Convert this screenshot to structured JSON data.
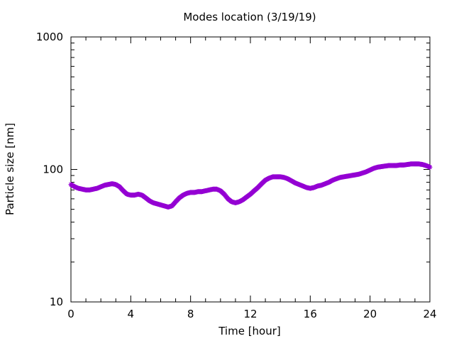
{
  "chart_data": {
    "type": "line",
    "title": "Modes location (3/19/19)",
    "xlabel": "Time [hour]",
    "ylabel": "Particle size [nm]",
    "xlim": [
      0,
      24
    ],
    "ylim": [
      10,
      1000
    ],
    "yscale": "log",
    "grid": false,
    "legend": "none",
    "x_ticks": [
      0,
      4,
      8,
      12,
      16,
      20,
      24
    ],
    "x_tick_labels": [
      "0",
      "4",
      "8",
      "12",
      "16",
      "20",
      "24"
    ],
    "y_ticks": [
      10,
      100,
      1000
    ],
    "y_tick_labels": [
      "10",
      "100",
      "1000"
    ],
    "series": [
      {
        "color": "#9400d3",
        "marker": "star",
        "x": [
          0,
          0.25,
          0.5,
          0.75,
          1.0,
          1.25,
          1.5,
          1.75,
          2.0,
          2.25,
          2.5,
          2.75,
          3.0,
          3.25,
          3.5,
          3.75,
          4.0,
          4.25,
          4.5,
          4.75,
          5.0,
          5.25,
          5.5,
          5.75,
          6.0,
          6.25,
          6.5,
          6.75,
          7.0,
          7.25,
          7.5,
          7.75,
          8.0,
          8.25,
          8.5,
          8.75,
          9.0,
          9.25,
          9.5,
          9.75,
          10.0,
          10.25,
          10.5,
          10.75,
          11.0,
          11.25,
          11.5,
          11.75,
          12.0,
          12.25,
          12.5,
          12.75,
          13.0,
          13.25,
          13.5,
          13.75,
          14.0,
          14.25,
          14.5,
          14.75,
          15.0,
          15.25,
          15.5,
          15.75,
          16.0,
          16.25,
          16.5,
          16.75,
          17.0,
          17.25,
          17.5,
          17.75,
          18.0,
          18.25,
          18.5,
          18.75,
          19.0,
          19.25,
          19.5,
          19.75,
          20.0,
          20.25,
          20.5,
          20.75,
          21.0,
          21.25,
          21.5,
          21.75,
          22.0,
          22.25,
          22.5,
          22.75,
          23.0,
          23.25,
          23.5,
          23.75,
          24.0
        ],
        "y": [
          77,
          74,
          72,
          71,
          70,
          70,
          71,
          72,
          74,
          76,
          77,
          78,
          77,
          74,
          69,
          65,
          64,
          64,
          65,
          64,
          61,
          58,
          56,
          55,
          54,
          53,
          52,
          53,
          57,
          61,
          64,
          66,
          67,
          67,
          68,
          68,
          69,
          70,
          71,
          71,
          69,
          65,
          60,
          57,
          56,
          57,
          59,
          62,
          65,
          69,
          73,
          78,
          83,
          86,
          88,
          88,
          88,
          87,
          85,
          82,
          79,
          77,
          75,
          73,
          72,
          73,
          75,
          76,
          78,
          80,
          83,
          85,
          87,
          88,
          89,
          90,
          91,
          92,
          94,
          96,
          99,
          102,
          104,
          105,
          106,
          107,
          107,
          107,
          108,
          108,
          109,
          110,
          110,
          110,
          109,
          107,
          104
        ]
      }
    ]
  }
}
